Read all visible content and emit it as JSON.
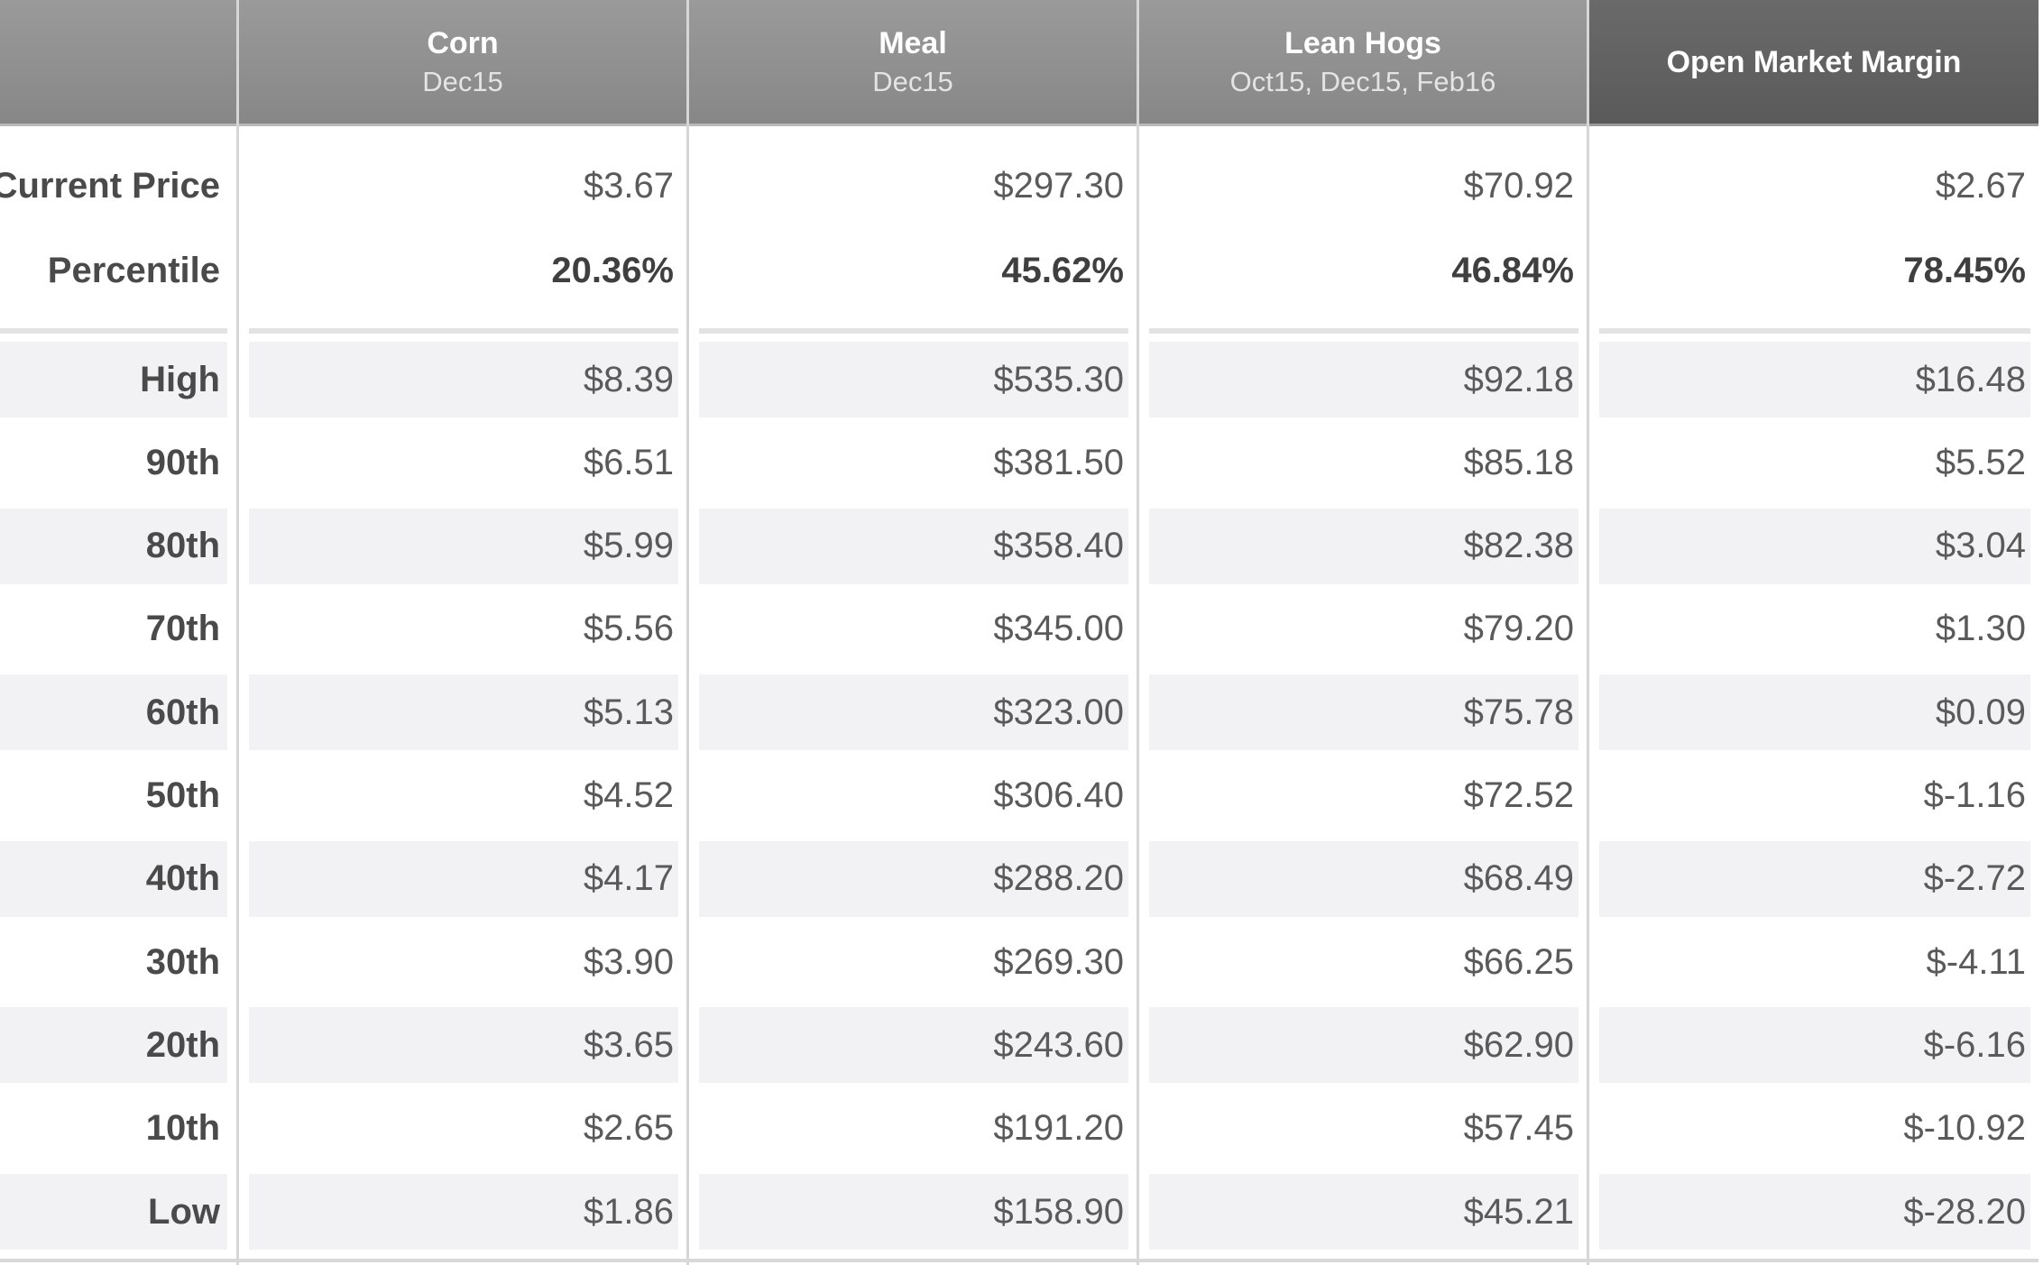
{
  "columns": [
    {
      "title": "Corn",
      "subtitle": "Dec15"
    },
    {
      "title": "Meal",
      "subtitle": "Dec15"
    },
    {
      "title": "Lean Hogs",
      "subtitle": "Oct15, Dec15, Feb16"
    },
    {
      "title": "Open Market Margin",
      "subtitle": ""
    }
  ],
  "summary": [
    {
      "label": "Current Price",
      "values": [
        "$3.67",
        "$297.30",
        "$70.92",
        "$2.67"
      ]
    },
    {
      "label": "Percentile",
      "values": [
        "20.36%",
        "45.62%",
        "46.84%",
        "78.45%"
      ]
    }
  ],
  "rows": [
    {
      "label": "High",
      "values": [
        "$8.39",
        "$535.30",
        "$92.18",
        "$16.48"
      ]
    },
    {
      "label": "90th",
      "values": [
        "$6.51",
        "$381.50",
        "$85.18",
        "$5.52"
      ]
    },
    {
      "label": "80th",
      "values": [
        "$5.99",
        "$358.40",
        "$82.38",
        "$3.04"
      ]
    },
    {
      "label": "70th",
      "values": [
        "$5.56",
        "$345.00",
        "$79.20",
        "$1.30"
      ]
    },
    {
      "label": "60th",
      "values": [
        "$5.13",
        "$323.00",
        "$75.78",
        "$0.09"
      ]
    },
    {
      "label": "50th",
      "values": [
        "$4.52",
        "$306.40",
        "$72.52",
        "$-1.16"
      ]
    },
    {
      "label": "40th",
      "values": [
        "$4.17",
        "$288.20",
        "$68.49",
        "$-2.72"
      ]
    },
    {
      "label": "30th",
      "values": [
        "$3.90",
        "$269.30",
        "$66.25",
        "$-4.11"
      ]
    },
    {
      "label": "20th",
      "values": [
        "$3.65",
        "$243.60",
        "$62.90",
        "$-6.16"
      ]
    },
    {
      "label": "10th",
      "values": [
        "$2.65",
        "$191.20",
        "$57.45",
        "$-10.92"
      ]
    },
    {
      "label": "Low",
      "values": [
        "$1.86",
        "$158.90",
        "$45.21",
        "$-28.20"
      ]
    }
  ]
}
